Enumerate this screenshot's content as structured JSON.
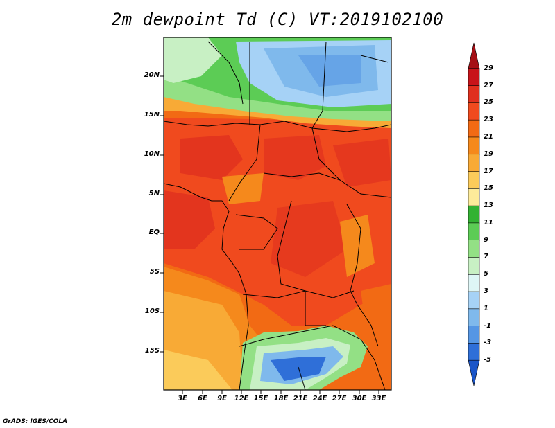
{
  "title": "2m dewpoint Td (C) VT:2019102100",
  "credit": "GrADS: IGES/COLA",
  "map": {
    "lat_labels": [
      "20N",
      "15N",
      "10N",
      "5N",
      "EQ",
      "5S",
      "10S",
      "15S"
    ],
    "lon_labels": [
      "3E",
      "6E",
      "9E",
      "12E",
      "15E",
      "18E",
      "21E",
      "24E",
      "27E",
      "30E",
      "33E"
    ]
  },
  "colorbar": {
    "labels": [
      "29",
      "27",
      "25",
      "23",
      "21",
      "19",
      "17",
      "15",
      "13",
      "11",
      "9",
      "7",
      "5",
      "3",
      "1",
      "-1",
      "-3",
      "-5"
    ],
    "colors": [
      "#a50f15",
      "#c8141a",
      "#e0301e",
      "#f04a1e",
      "#f26a14",
      "#f5891c",
      "#f8aa36",
      "#fbcb5a",
      "#fdeb9a",
      "#33b233",
      "#5ccc55",
      "#93e085",
      "#c8f0c4",
      "#def6f6",
      "#a6d2f6",
      "#7fb9ec",
      "#5596e4",
      "#2f6fd8",
      "#1a55c8"
    ]
  }
}
